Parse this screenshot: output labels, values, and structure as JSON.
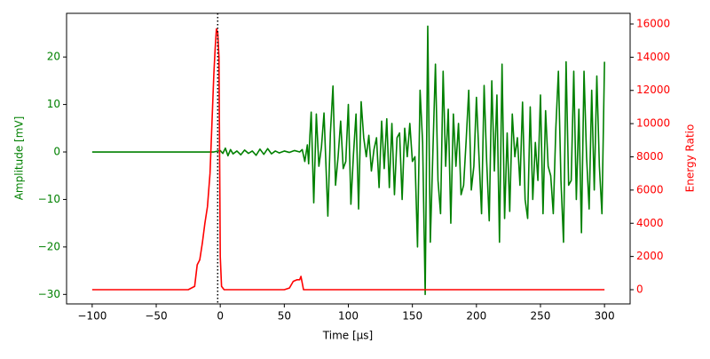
{
  "chart_data": {
    "type": "line",
    "xlabel": "Time [µs]",
    "ylabel": "Amplitude [mV]",
    "y2label": "Energy Ratio",
    "ylabel_color": "#008000",
    "y2label_color": "#ff0000",
    "xlim": [
      -120,
      320
    ],
    "ylim": [
      -32,
      29.2
    ],
    "y2lim": [
      -856,
      16642
    ],
    "xticks": [
      {
        "value": -100,
        "label": "−100"
      },
      {
        "value": -50,
        "label": "−50"
      },
      0,
      50,
      100,
      150,
      200,
      250,
      300
    ],
    "yticks": [
      {
        "value": -30,
        "label": "−30"
      },
      {
        "value": -20,
        "label": "−20"
      },
      {
        "value": -10,
        "label": "−10"
      },
      0,
      10,
      20
    ],
    "y2ticks": [
      0,
      2000,
      4000,
      6000,
      8000,
      10000,
      12000,
      14000,
      16000
    ],
    "vline": -2,
    "series": [
      {
        "color": "#008000",
        "axis": "y",
        "x": [
          -100,
          -5,
          0,
          2,
          4,
          6,
          8,
          10,
          13,
          16,
          19,
          22,
          25,
          28,
          31,
          34,
          37,
          40,
          43,
          46,
          50,
          54,
          58,
          62,
          64,
          66,
          68,
          69,
          70,
          71,
          73,
          75,
          77,
          79,
          81,
          84,
          86,
          88,
          90,
          92,
          94,
          96,
          98,
          100,
          102,
          104,
          106,
          108,
          110,
          112,
          114,
          116,
          118,
          120,
          122,
          124,
          126,
          128,
          130,
          132,
          134,
          136,
          138,
          140,
          142,
          144,
          146,
          148,
          150,
          152,
          154,
          156,
          158,
          160,
          162,
          164,
          166,
          168,
          170,
          172,
          174,
          176,
          178,
          180,
          182,
          184,
          186,
          188,
          190,
          192,
          194,
          196,
          198,
          200,
          202,
          204,
          206,
          208,
          210,
          212,
          214,
          216,
          218,
          220,
          222,
          224,
          226,
          228,
          230,
          232,
          234,
          236,
          238,
          240,
          242,
          244,
          246,
          248,
          250,
          252,
          254,
          256,
          258,
          260,
          262,
          264,
          266,
          268,
          270,
          272,
          274,
          276,
          278,
          280,
          282,
          284,
          286,
          288,
          290,
          292,
          294,
          296,
          298,
          300
        ],
        "values": [
          0,
          0,
          0.3,
          -0.3,
          0.8,
          -0.8,
          0.5,
          -0.4,
          0.2,
          -0.6,
          0.4,
          -0.3,
          0.2,
          -0.7,
          0.6,
          -0.5,
          0.7,
          -0.4,
          0.2,
          -0.2,
          0.2,
          -0.1,
          0.3,
          0,
          0.5,
          -2,
          1.5,
          -2.5,
          3.5,
          8.4,
          -10.7,
          8,
          -3,
          1,
          8.2,
          -13.5,
          4,
          13.9,
          -7,
          -1,
          6.5,
          -3.5,
          -2,
          10,
          -11,
          -0.5,
          8,
          -12,
          10.6,
          3,
          -1,
          3.5,
          -4,
          0.5,
          3,
          -7.5,
          6.5,
          -3.5,
          7,
          -7.5,
          6,
          -9,
          3,
          4,
          -10,
          5,
          -1,
          6,
          -2,
          -1,
          -20,
          13,
          2,
          -30,
          26.5,
          -19,
          0,
          18.5,
          -6,
          -13,
          17,
          -3,
          9,
          -15,
          8,
          -3,
          6,
          -9,
          -7,
          2.5,
          13,
          -8,
          -3,
          11.5,
          -1,
          -13,
          14,
          -2,
          -14.5,
          15,
          -4,
          12,
          -19,
          18.5,
          -14,
          4,
          -12.5,
          8,
          -1,
          3,
          -7,
          10.5,
          -10,
          -14,
          9.5,
          -10,
          2,
          -6,
          12,
          -13,
          8.7,
          -3,
          -5,
          -13,
          5,
          17,
          -6,
          -19,
          19,
          -7,
          -6,
          17,
          -10,
          9,
          -17,
          17,
          -1,
          -12,
          13,
          -8,
          16,
          -3,
          -13,
          19
        ]
      },
      {
        "color": "#ff0000",
        "axis": "y2",
        "x": [
          -100,
          -25,
          -20,
          -18,
          -16,
          -14,
          -12,
          -10,
          -8,
          -6,
          -5,
          -4,
          -3,
          -2,
          -1,
          0,
          1,
          3,
          50,
          54,
          57,
          60,
          62,
          63,
          64,
          65,
          300
        ],
        "values": [
          0,
          0,
          200,
          1500,
          1800,
          2800,
          4000,
          5000,
          7000,
          11000,
          13000,
          14500,
          15700,
          15500,
          14000,
          2000,
          200,
          0,
          0,
          100,
          500,
          600,
          600,
          800,
          400,
          0,
          0
        ]
      }
    ]
  }
}
